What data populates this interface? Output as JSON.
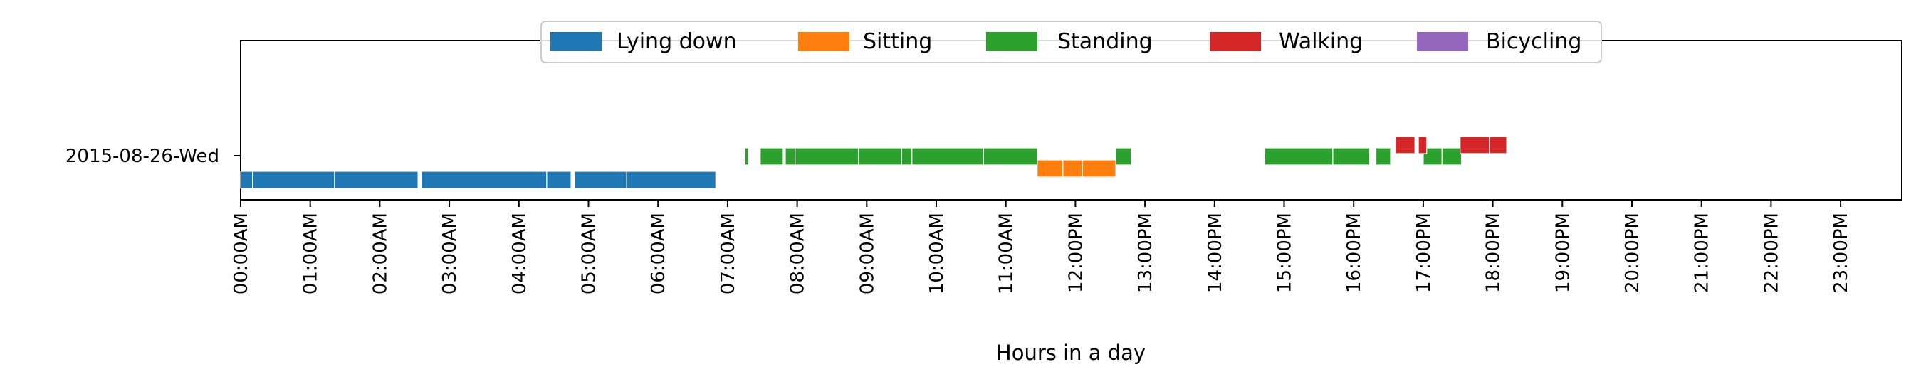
{
  "chart_data": {
    "type": "timeline",
    "title": "",
    "xlabel": "Hours in a day",
    "ylabel": "",
    "xlim": [
      0,
      24
    ],
    "grid": false,
    "legend_placement": "top-center",
    "row_label": "2015-08-26-Wed",
    "x_tick_labels": [
      "00:00AM",
      "01:00AM",
      "02:00AM",
      "03:00AM",
      "04:00AM",
      "05:00AM",
      "06:00AM",
      "07:00AM",
      "08:00AM",
      "09:00AM",
      "10:00AM",
      "11:00AM",
      "12:00PM",
      "13:00PM",
      "14:00PM",
      "15:00PM",
      "16:00PM",
      "17:00PM",
      "18:00PM",
      "19:00PM",
      "20:00PM",
      "21:00PM",
      "22:00PM",
      "23:00PM"
    ],
    "series": [
      {
        "name": "Lying down",
        "color": "#1f77b4",
        "level": 0,
        "segments": [
          [
            0.0,
            0.17
          ],
          [
            0.17,
            1.35
          ],
          [
            1.35,
            2.55
          ],
          [
            2.6,
            4.4
          ],
          [
            4.4,
            4.75
          ],
          [
            4.8,
            5.55
          ],
          [
            5.55,
            6.83
          ]
        ]
      },
      {
        "name": "Sitting",
        "color": "#ff7f0e",
        "level": 1,
        "segments": [
          [
            11.45,
            11.82
          ],
          [
            11.82,
            12.1
          ],
          [
            12.1,
            12.58
          ]
        ]
      },
      {
        "name": "Standing",
        "color": "#2ca02c",
        "level": 2,
        "segments": [
          [
            7.25,
            7.3
          ],
          [
            7.47,
            7.8
          ],
          [
            7.83,
            7.97
          ],
          [
            7.97,
            8.88
          ],
          [
            8.88,
            9.5
          ],
          [
            9.5,
            9.65
          ],
          [
            9.65,
            10.68
          ],
          [
            10.68,
            11.45
          ],
          [
            12.58,
            12.8
          ],
          [
            14.72,
            15.7
          ],
          [
            15.7,
            16.23
          ],
          [
            16.32,
            16.53
          ],
          [
            17.0,
            17.27
          ],
          [
            17.27,
            17.55
          ]
        ]
      },
      {
        "name": "Walking",
        "color": "#d62728",
        "level": 3,
        "segments": [
          [
            16.6,
            16.88
          ],
          [
            16.93,
            17.05
          ],
          [
            17.53,
            17.95
          ],
          [
            17.95,
            18.2
          ]
        ]
      },
      {
        "name": "Bicycling",
        "color": "#9467bd",
        "level": 4,
        "segments": []
      }
    ]
  }
}
